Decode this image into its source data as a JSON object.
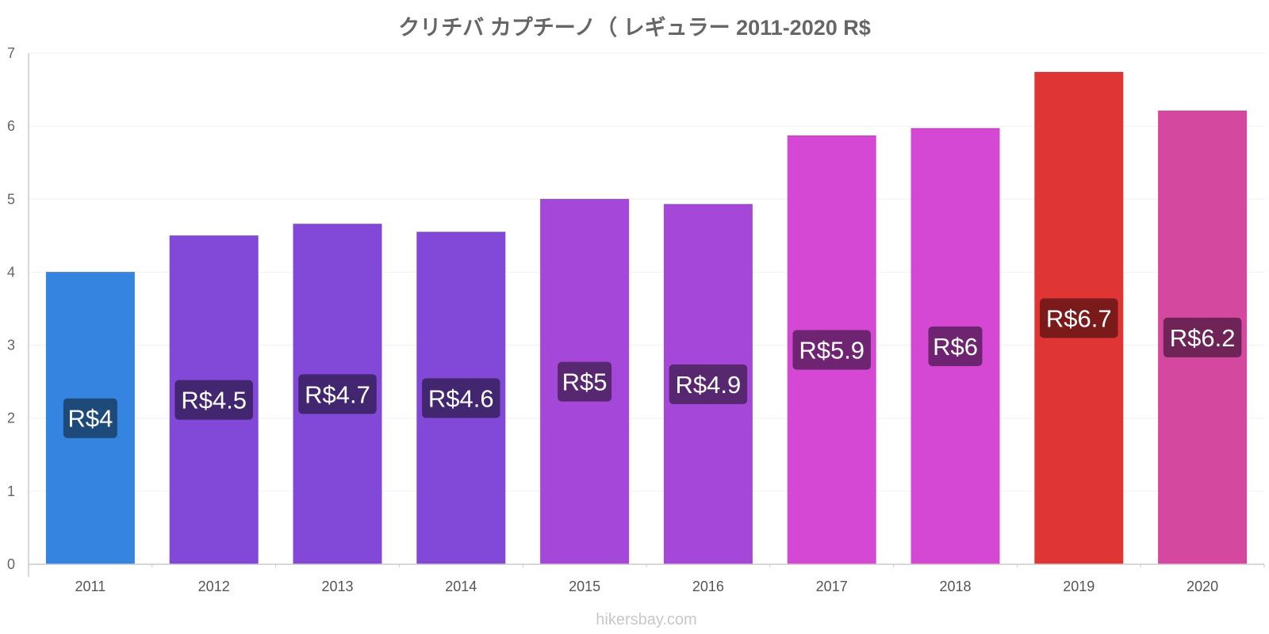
{
  "chart_data": {
    "type": "bar",
    "title": "クリチバ カプチーノ（ レギュラー 2011-2020 R$",
    "xlabel": "",
    "ylabel": "",
    "ylim": [
      0,
      7
    ],
    "yticks": [
      "0",
      "1",
      "2",
      "3",
      "4",
      "5",
      "6",
      "7"
    ],
    "categories": [
      "2011",
      "2012",
      "2013",
      "2014",
      "2015",
      "2016",
      "2017",
      "2018",
      "2019",
      "2020"
    ],
    "values": [
      4.0,
      4.5,
      4.66,
      4.55,
      5.0,
      4.93,
      5.87,
      5.97,
      6.74,
      6.21
    ],
    "labels": [
      "R$4",
      "R$4.5",
      "R$4.7",
      "R$4.6",
      "R$5",
      "R$4.9",
      "R$5.9",
      "R$6",
      "R$6.7",
      "R$6.2"
    ],
    "bar_colors": [
      "#3584e0",
      "#8249d9",
      "#8249d9",
      "#8249d9",
      "#a548d9",
      "#a548d9",
      "#d548d4",
      "#d548d4",
      "#e03535",
      "#d5489f"
    ],
    "label_colors": [
      "#1e4a7a",
      "#432670",
      "#432670",
      "#432670",
      "#57276f",
      "#57276f",
      "#6e2470",
      "#6e2470",
      "#7a1a1a",
      "#6e2456"
    ],
    "grid": true,
    "legend": "none"
  },
  "footer": {
    "source": "hikersbay.com"
  }
}
